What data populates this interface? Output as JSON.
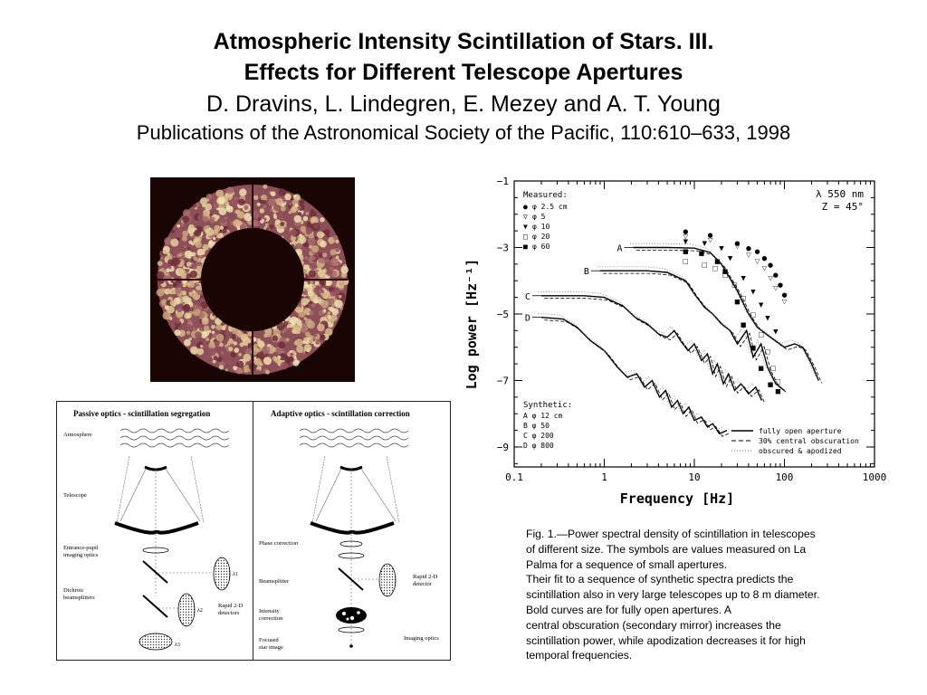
{
  "header": {
    "title_line1": "Atmospheric Intensity Scintillation of Stars. III.",
    "title_line2": "Effects for Different Telescope Apertures",
    "authors": "D. Dravins, L. Lindegren, E. Mezey and A. T. Young",
    "citation": "Publications of the Astronomical Society of the Pacific, 110:610–633, 1998"
  },
  "optics_diagram": {
    "passive_title": "Passive optics  -  scintillation segregation",
    "adaptive_title": "Adaptive optics  -  scintillation correction",
    "passive_labels": [
      "Atmosphere",
      "Telescope",
      "Entrance-pupil\nimaging optics",
      "Dichroic\nbeamsplitters",
      "Rapid 2-D\ndetectors"
    ],
    "adaptive_labels": [
      "Phase correction",
      "Beamsplitter",
      "Intensity\ncorrection",
      "Focused\nstar image",
      "Rapid 2-D\ndetector",
      "Imaging optics"
    ],
    "lambda_labels": [
      "λ1",
      "λ2",
      "λ3"
    ]
  },
  "chart_data": {
    "type": "line",
    "xlabel": "Frequency [Hz]",
    "ylabel": "Log power [Hz⁻¹]",
    "xscale": "log",
    "xlim": [
      0.1,
      1000
    ],
    "ylim": [
      -9.6,
      -1
    ],
    "x_ticks": [
      "0.1",
      "1",
      "10",
      "100",
      "1000"
    ],
    "y_ticks": [
      "−1",
      "−3",
      "−5",
      "−7",
      "−9"
    ],
    "annotation_top_right": [
      "λ 550 nm",
      "Z = 45°"
    ],
    "measured_legend": {
      "title": "Measured:",
      "entries": [
        {
          "symbol": "●",
          "label": "φ   2.5 cm"
        },
        {
          "symbol": "▽",
          "label": "φ   5"
        },
        {
          "symbol": "▼",
          "label": "φ   10"
        },
        {
          "symbol": "□",
          "label": "φ   20"
        },
        {
          "symbol": "■",
          "label": "φ   60"
        }
      ]
    },
    "synthetic_legend": {
      "title": "Synthetic:",
      "entries": [
        "A  φ   12 cm",
        "B  φ   50",
        "C  φ  200",
        "D  φ  800"
      ]
    },
    "line_legend": [
      "fully open aperture",
      "30% central obscuration",
      "obscured & apodized"
    ],
    "series": [
      {
        "name": "A",
        "style": "fully open aperture",
        "points": [
          [
            2.1,
            -3.0
          ],
          [
            5,
            -3.0
          ],
          [
            10,
            -3.02
          ],
          [
            15,
            -3.15
          ],
          [
            20,
            -3.5
          ],
          [
            30,
            -4.3
          ],
          [
            40,
            -5.0
          ],
          [
            50,
            -5.4
          ],
          [
            70,
            -5.7
          ],
          [
            100,
            -6.0
          ],
          [
            130,
            -5.9
          ],
          [
            160,
            -6.0
          ],
          [
            200,
            -6.5
          ],
          [
            240,
            -7.0
          ]
        ]
      },
      {
        "name": "B",
        "style": "fully open aperture",
        "points": [
          [
            0.9,
            -3.7
          ],
          [
            3,
            -3.7
          ],
          [
            5,
            -3.75
          ],
          [
            8,
            -4.0
          ],
          [
            10,
            -4.4
          ],
          [
            13,
            -4.8
          ],
          [
            16,
            -5.0
          ],
          [
            20,
            -5.3
          ],
          [
            25,
            -5.5
          ],
          [
            30,
            -5.9
          ],
          [
            38,
            -5.5
          ],
          [
            45,
            -6.3
          ],
          [
            55,
            -5.9
          ],
          [
            65,
            -6.6
          ],
          [
            80,
            -7.1
          ],
          [
            100,
            -7.3
          ]
        ]
      },
      {
        "name": "C",
        "style": "fully open aperture",
        "points": [
          [
            0.2,
            -4.45
          ],
          [
            0.6,
            -4.45
          ],
          [
            1,
            -4.5
          ],
          [
            1.6,
            -4.75
          ],
          [
            2.2,
            -5.1
          ],
          [
            3,
            -5.3
          ],
          [
            4,
            -5.6
          ],
          [
            5,
            -5.7
          ],
          [
            6,
            -5.5
          ],
          [
            7,
            -5.8
          ],
          [
            8.5,
            -6.1
          ],
          [
            10,
            -5.9
          ],
          [
            12,
            -6.4
          ],
          [
            14,
            -6.2
          ],
          [
            16,
            -6.8
          ],
          [
            18,
            -6.5
          ],
          [
            21,
            -7.1
          ],
          [
            24,
            -6.8
          ],
          [
            28,
            -7.3
          ],
          [
            33,
            -7.1
          ],
          [
            40,
            -7.4
          ],
          [
            48,
            -7.2
          ],
          [
            56,
            -7.6
          ]
        ]
      },
      {
        "name": "D",
        "style": "fully open aperture",
        "points": [
          [
            0.2,
            -5.1
          ],
          [
            0.35,
            -5.15
          ],
          [
            0.5,
            -5.4
          ],
          [
            0.7,
            -5.8
          ],
          [
            1,
            -6.1
          ],
          [
            1.4,
            -6.6
          ],
          [
            1.8,
            -6.9
          ],
          [
            2.3,
            -6.8
          ],
          [
            2.8,
            -7.2
          ],
          [
            3.4,
            -7.0
          ],
          [
            4.1,
            -7.5
          ],
          [
            4.8,
            -7.3
          ],
          [
            5.6,
            -7.8
          ],
          [
            6.5,
            -7.6
          ],
          [
            7.5,
            -8.0
          ],
          [
            8.7,
            -7.8
          ],
          [
            10,
            -8.2
          ],
          [
            12,
            -8.1
          ],
          [
            14,
            -8.4
          ],
          [
            16,
            -8.3
          ],
          [
            19,
            -8.6
          ],
          [
            23,
            -8.5
          ]
        ]
      }
    ],
    "measured_points": [
      {
        "symbol": "●",
        "points": [
          [
            8,
            -2.5
          ],
          [
            15,
            -2.6
          ],
          [
            30,
            -2.85
          ],
          [
            40,
            -3.0
          ],
          [
            50,
            -3.1
          ],
          [
            60,
            -3.3
          ],
          [
            70,
            -3.5
          ],
          [
            80,
            -3.8
          ],
          [
            90,
            -4.1
          ],
          [
            100,
            -4.4
          ]
        ]
      },
      {
        "symbol": "▽",
        "points": [
          [
            8,
            -2.65
          ],
          [
            15,
            -2.75
          ],
          [
            30,
            -2.95
          ],
          [
            40,
            -3.2
          ],
          [
            50,
            -3.4
          ],
          [
            60,
            -3.6
          ],
          [
            70,
            -3.9
          ],
          [
            80,
            -4.2
          ],
          [
            100,
            -4.6
          ]
        ]
      },
      {
        "symbol": "▼",
        "points": [
          [
            8,
            -2.8
          ],
          [
            13,
            -2.85
          ],
          [
            20,
            -3.0
          ],
          [
            25,
            -3.3
          ],
          [
            35,
            -3.9
          ],
          [
            45,
            -4.3
          ],
          [
            55,
            -4.7
          ],
          [
            65,
            -5.1
          ],
          [
            80,
            -5.5
          ]
        ]
      },
      {
        "symbol": "□",
        "points": [
          [
            8,
            -3.4
          ],
          [
            13,
            -3.5
          ],
          [
            17,
            -3.6
          ],
          [
            22,
            -3.8
          ],
          [
            28,
            -4.1
          ],
          [
            35,
            -4.5
          ],
          [
            45,
            -5.0
          ],
          [
            55,
            -5.6
          ],
          [
            65,
            -6.1
          ],
          [
            75,
            -6.6
          ],
          [
            85,
            -7.0
          ]
        ]
      },
      {
        "symbol": "■",
        "points": [
          [
            8,
            -3.1
          ],
          [
            12,
            -3.15
          ],
          [
            18,
            -3.4
          ],
          [
            22,
            -3.7
          ],
          [
            30,
            -4.6
          ],
          [
            35,
            -5.3
          ],
          [
            45,
            -6.0
          ],
          [
            55,
            -6.6
          ],
          [
            70,
            -7.1
          ],
          [
            85,
            -7.3
          ]
        ]
      }
    ]
  },
  "caption": [
    "Fig. 1.—Power spectral density of scintillation in telescopes",
    "of different size. The symbols are values measured on La",
    "Palma for a sequence of small apertures.",
    "Their fit to a sequence of synthetic spectra predicts the",
    "scintillation also in very large telescopes up to 8 m diameter.",
    "Bold curves are for fully open apertures. A",
    "central obscuration (secondary mirror) increases the",
    "scintillation power, while apodization decreases it for high",
    "temporal frequencies."
  ]
}
